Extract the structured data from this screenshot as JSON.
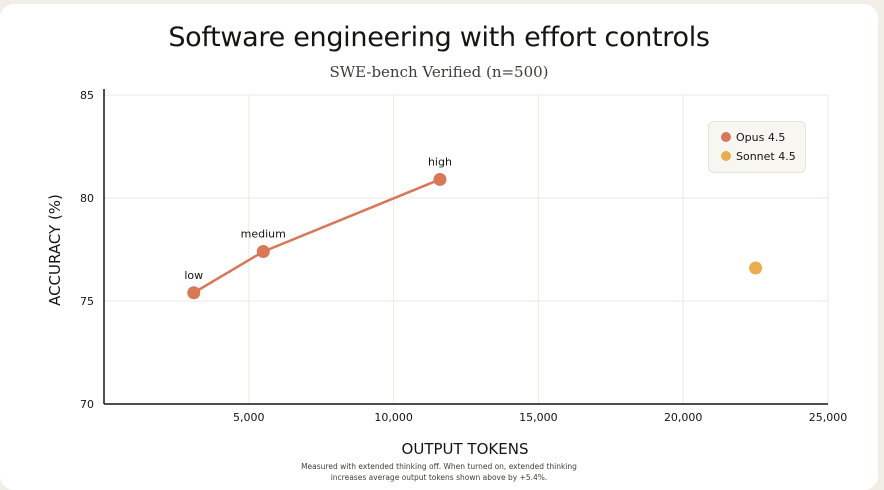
{
  "title": "Software engineering with effort controls",
  "subtitle": "SWE-bench Verified (n=500)",
  "footnote": {
    "line1": "Measured with extended thinking off. When turned on, extended thinking",
    "line2": "increases average output tokens shown above by +5.4%."
  },
  "colors": {
    "opus": "#d97757",
    "sonnet": "#e9ad4a",
    "grid": "#ece9df",
    "axis": "#141413"
  },
  "chart_data": {
    "type": "line",
    "xlabel": "OUTPUT TOKENS",
    "ylabel": "ACCURACY (%)",
    "xlim": [
      0,
      25000
    ],
    "ylim": [
      70,
      85
    ],
    "xticks": [
      5000,
      10000,
      15000,
      20000,
      25000
    ],
    "xtick_labels": [
      "5,000",
      "10,000",
      "15,000",
      "20,000",
      "25,000"
    ],
    "yticks": [
      70,
      75,
      80,
      85
    ],
    "ytick_labels": [
      "70",
      "75",
      "80",
      "85"
    ],
    "grid": true,
    "legend_position": "top-right",
    "series": [
      {
        "name": "Opus 4.5",
        "color": "#d97757",
        "connected": true,
        "points": [
          {
            "x": 3100,
            "y": 75.4,
            "label": "low"
          },
          {
            "x": 5500,
            "y": 77.4,
            "label": "medium"
          },
          {
            "x": 11600,
            "y": 80.9,
            "label": "high"
          }
        ]
      },
      {
        "name": "Sonnet 4.5",
        "color": "#e9ad4a",
        "connected": false,
        "points": [
          {
            "x": 22500,
            "y": 76.6
          }
        ]
      }
    ]
  }
}
